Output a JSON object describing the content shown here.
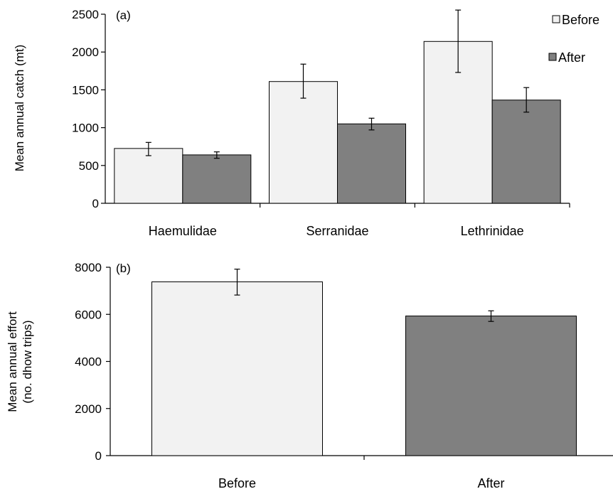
{
  "colors": {
    "before": "#f2f2f2",
    "after": "#808080"
  },
  "chart_data": [
    {
      "type": "bar",
      "panel_label": "(a)",
      "ylabel": "Mean annual catch (mt)",
      "categories": [
        "Haemulidae",
        "Serranidae",
        "Lethrinidae"
      ],
      "ylim": [
        0,
        2500
      ],
      "yticks": [
        0,
        500,
        1000,
        1500,
        2000,
        2500
      ],
      "legend_position": "top-right",
      "series": [
        {
          "name": "Before",
          "color": "#f2f2f2",
          "values": [
            725,
            1610,
            2140
          ],
          "err_low": [
            630,
            1390,
            1730
          ],
          "err_high": [
            805,
            1840,
            2555
          ]
        },
        {
          "name": "After",
          "color": "#808080",
          "values": [
            640,
            1050,
            1365
          ],
          "err_low": [
            595,
            970,
            1205
          ],
          "err_high": [
            680,
            1125,
            1530
          ]
        }
      ]
    },
    {
      "type": "bar",
      "panel_label": "(b)",
      "ylabel": [
        "Mean annual effort",
        "(no. dhow trips)"
      ],
      "categories": [
        "Before",
        "After"
      ],
      "ylim": [
        0,
        8000
      ],
      "yticks": [
        0,
        2000,
        4000,
        6000,
        8000
      ],
      "bars": [
        {
          "value": 7380,
          "err_low": 6820,
          "err_high": 7920,
          "color": "#f2f2f2"
        },
        {
          "value": 5930,
          "err_low": 5700,
          "err_high": 6150,
          "color": "#808080"
        }
      ]
    }
  ]
}
